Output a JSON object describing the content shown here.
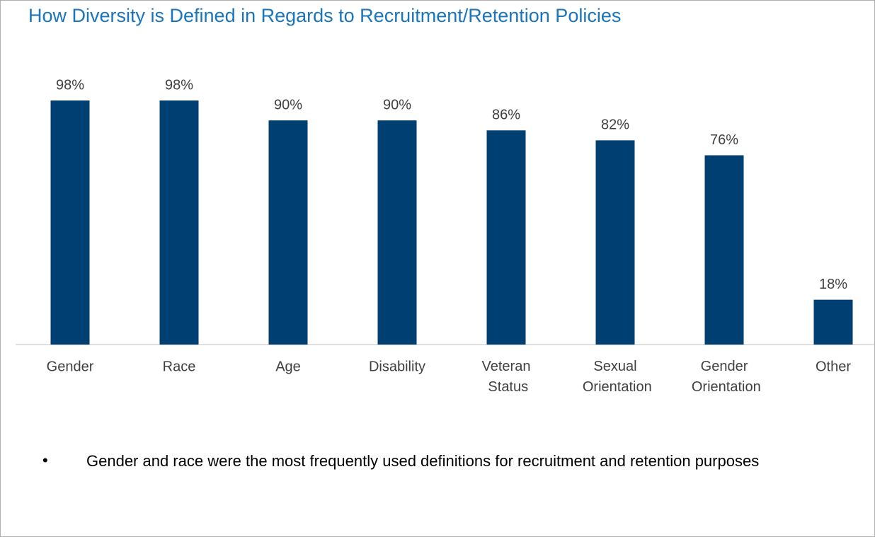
{
  "chart_data": {
    "type": "bar",
    "title": "How Diversity is Defined in Regards to Recruitment/Retention Policies",
    "categories": [
      "Gender",
      "Race",
      "Age",
      "Disability",
      "Veteran Status",
      "Sexual Orientation",
      "Gender Orientation",
      "Other"
    ],
    "values": [
      98,
      98,
      90,
      90,
      86,
      82,
      76,
      18
    ],
    "value_labels": [
      "98%",
      "98%",
      "90%",
      "90%",
      "86%",
      "82%",
      "76%",
      "18%"
    ],
    "color": "#003f72",
    "ylim": [
      0,
      100
    ],
    "note": "Gender and race were the most frequently used definitions for recruitment and retention purposes"
  }
}
